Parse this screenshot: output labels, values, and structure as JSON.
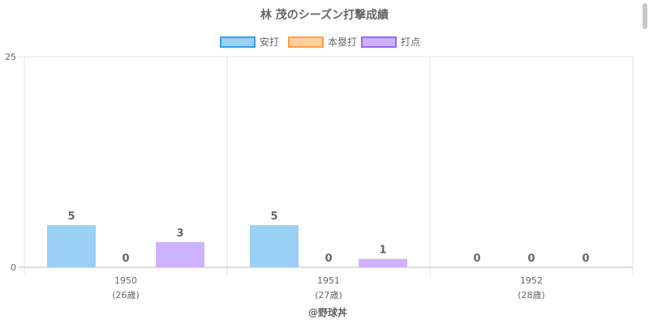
{
  "chart_data": {
    "type": "bar",
    "title": "林 茂のシーズン打撃成績",
    "categories": [
      {
        "year": "1950",
        "age": "(26歳)"
      },
      {
        "year": "1951",
        "age": "(27歳)"
      },
      {
        "year": "1952",
        "age": "(28歳)"
      }
    ],
    "series": [
      {
        "name": "安打",
        "values": [
          5,
          5,
          0
        ],
        "fill": "#9ad0f5",
        "stroke": "#36a2eb"
      },
      {
        "name": "本塁打",
        "values": [
          0,
          0,
          0
        ],
        "fill": "#ffcf9f",
        "stroke": "#ff9f40"
      },
      {
        "name": "打点",
        "values": [
          3,
          1,
          0
        ],
        "fill": "#ccb2ff",
        "stroke": "#9966ff"
      }
    ],
    "ylim": [
      0,
      25
    ],
    "yticks": [
      0,
      25
    ],
    "legend_position": "top",
    "grid": true
  },
  "footer": "@野球丼"
}
